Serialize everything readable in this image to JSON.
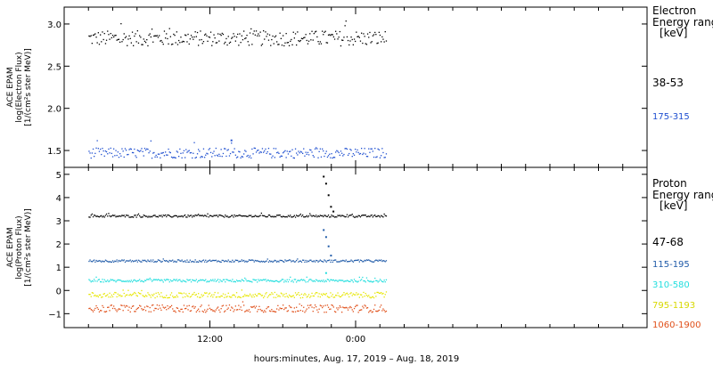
{
  "chart_data": [
    {
      "type": "scatter",
      "panel": "electron",
      "ylabel_lines": [
        "ACE EPAM",
        "log(Electron Flux)",
        "[1/(cm²s ster MeV)]"
      ],
      "ylim": [
        1.3,
        3.2
      ],
      "yticks": [
        1.5,
        2.0,
        2.5,
        3.0
      ],
      "ytick_labels": [
        "1.5",
        "2.0",
        "2.5",
        "3.0"
      ],
      "legend_title_lines": [
        "Electron",
        "Energy ranges",
        "[keV]"
      ],
      "series": [
        {
          "name": "38-53",
          "color": "#000000",
          "baseline": 2.83,
          "noise": 0.09,
          "x_end_hour": 26.5,
          "bumps": []
        },
        {
          "name": "175-315",
          "color": "#1f4fd0",
          "baseline": 1.47,
          "noise": 0.06,
          "x_end_hour": 26.5,
          "bumps": [
            {
              "hour": 13.7,
              "value": 1.62
            }
          ]
        }
      ]
    },
    {
      "type": "scatter",
      "panel": "proton",
      "ylabel_lines": [
        "ACE EPAM",
        "log(Proton Flux)",
        "[1/(cm²s ster MeV)]"
      ],
      "ylim": [
        -1.6,
        5.3
      ],
      "yticks": [
        -1,
        0,
        1,
        2,
        3,
        4,
        5
      ],
      "ytick_labels": [
        "−1",
        "0",
        "1",
        "2",
        "3",
        "4",
        "5"
      ],
      "legend_title_lines": [
        "Proton",
        "Energy ranges",
        "[keV]"
      ],
      "series": [
        {
          "name": "47-68",
          "color": "#000000",
          "baseline": 3.2,
          "noise": 0.05,
          "x_end_hour": 26.5,
          "bumps": [
            {
              "hour": 21.3,
              "value": 4.9
            },
            {
              "hour": 21.5,
              "value": 4.6
            },
            {
              "hour": 21.7,
              "value": 4.1
            },
            {
              "hour": 21.9,
              "value": 3.6
            },
            {
              "hour": 22.1,
              "value": 3.4
            }
          ]
        },
        {
          "name": "115-195",
          "color": "#1f5aa8",
          "baseline": 1.27,
          "noise": 0.05,
          "x_end_hour": 26.5,
          "bumps": [
            {
              "hour": 21.3,
              "value": 2.6
            },
            {
              "hour": 21.5,
              "value": 2.3
            },
            {
              "hour": 21.7,
              "value": 1.9
            },
            {
              "hour": 21.9,
              "value": 1.5
            }
          ]
        },
        {
          "name": "310-580",
          "color": "#22dede",
          "baseline": 0.42,
          "noise": 0.06,
          "x_end_hour": 26.5,
          "bumps": [
            {
              "hour": 21.5,
              "value": 0.75
            }
          ]
        },
        {
          "name": "795-1193",
          "color": "#e6e600",
          "baseline": -0.2,
          "noise": 0.12,
          "x_end_hour": 26.5,
          "bumps": []
        },
        {
          "name": "1060-1900",
          "color": "#e0501a",
          "baseline": -0.78,
          "noise": 0.16,
          "x_end_hour": 26.5,
          "bumps": []
        }
      ]
    }
  ],
  "xaxis": {
    "xlim_hours": [
      0,
      48
    ],
    "start_hour": 2.0,
    "major_ticks": [
      12,
      24
    ],
    "tick_labels": [
      "12:00",
      "0:00"
    ],
    "minor_every_hours": 2,
    "xlabel": "hours:minutes, Aug. 17, 2019 – Aug. 18, 2019"
  }
}
